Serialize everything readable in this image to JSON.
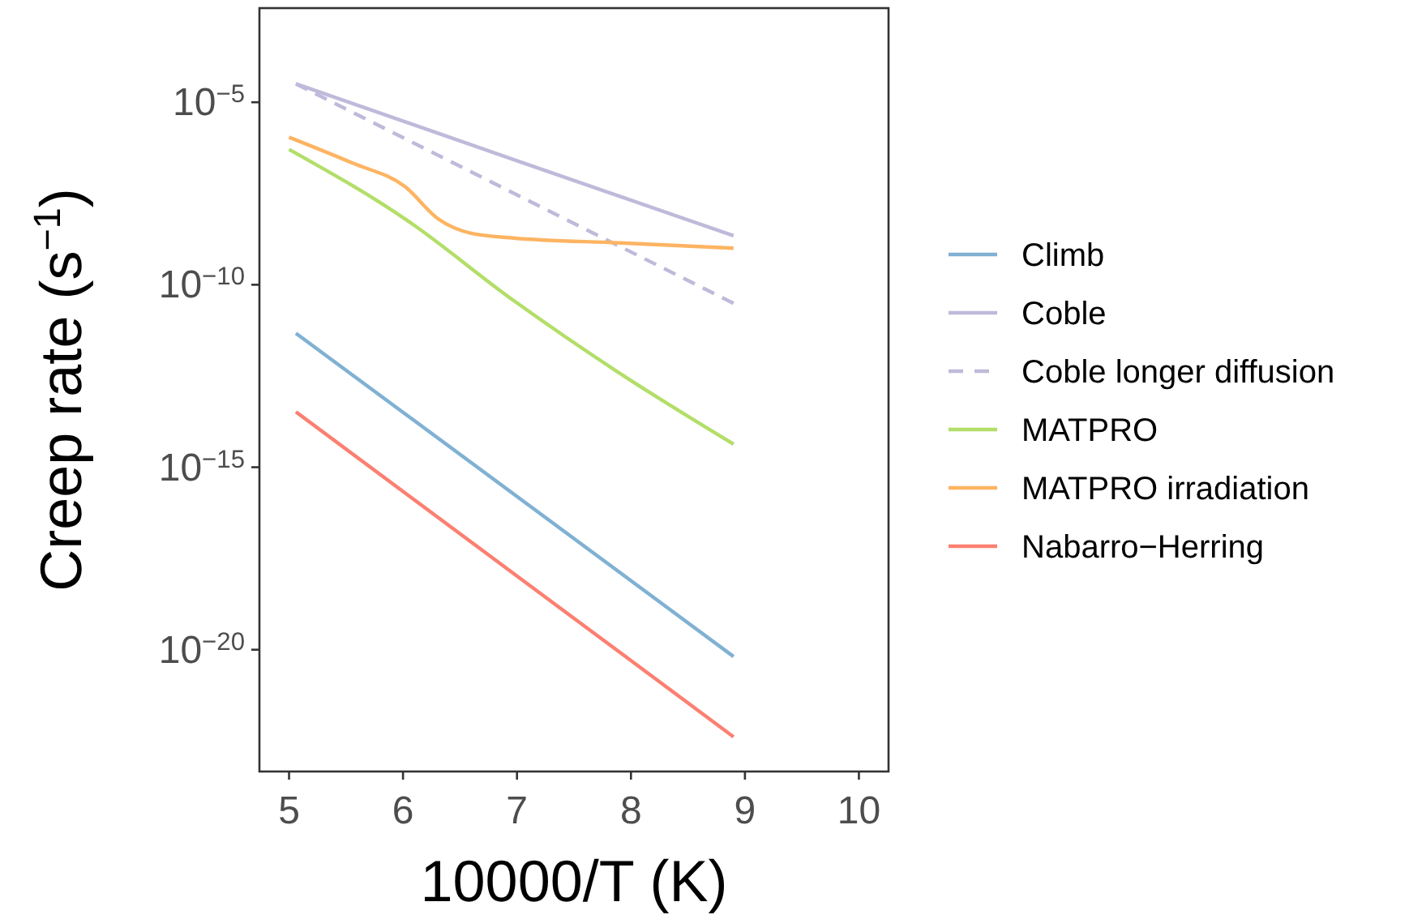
{
  "chart_data": {
    "type": "line",
    "xlabel": "10000/T (K)",
    "ylabel": "Creep rate (s$^{−1}$)",
    "log": "y",
    "xlim": [
      4.74,
      10.26
    ],
    "xticks": [
      5,
      6,
      7,
      8,
      9,
      10
    ],
    "ylim": [
      4.6e-24,
      0.0038
    ],
    "yticks": [
      {
        "value": 1e-05,
        "label": "10$^{−5}$"
      },
      {
        "value": 1e-10,
        "label": "10$^{−10}$"
      },
      {
        "value": 1e-15,
        "label": "10$^{−15}$"
      },
      {
        "value": 1e-20,
        "label": "10$^{−20}$"
      }
    ],
    "legend": "right",
    "grid": false,
    "series": [
      {
        "name": "Climb",
        "color": "#80b1d3",
        "x": [
          5.06,
          8.9
        ],
        "values": [
          4.7e-12,
          6.5e-21
        ]
      },
      {
        "name": "Coble",
        "color": "#bebada",
        "x": [
          5.06,
          7,
          8.9
        ],
        "values": [
          3.2e-05,
          2.5e-07,
          2.2e-09
        ]
      },
      {
        "name": "Coble longer diffusion",
        "color": "#bebada",
        "line_style": "dashed",
        "x": [
          5.06,
          7,
          8.9
        ],
        "values": [
          3.2e-05,
          2.9e-08,
          3.1e-11
        ]
      },
      {
        "name": "MATPRO",
        "color": "#b3de69",
        "x": [
          5.0,
          6.02,
          6.97,
          7.91,
          8.9
        ],
        "values": [
          5.1e-07,
          6.3e-09,
          3.7e-11,
          3.6e-13,
          4.3e-15
        ]
      },
      {
        "name": "MATPRO irradiation",
        "color": "#fdb462",
        "x": [
          5.0,
          5.55,
          6.02,
          6.31,
          6.59,
          6.97,
          7.91,
          8.9
        ],
        "values": [
          1.1e-06,
          2.2e-07,
          4.8e-08,
          6.3e-09,
          2.6e-09,
          1.9e-09,
          1.4e-09,
          1e-09
        ]
      },
      {
        "name": "Nabarro−Herring",
        "color": "#fb8072",
        "x": [
          5.06,
          8.9
        ],
        "values": [
          3.3e-14,
          4.1e-23
        ]
      }
    ]
  }
}
